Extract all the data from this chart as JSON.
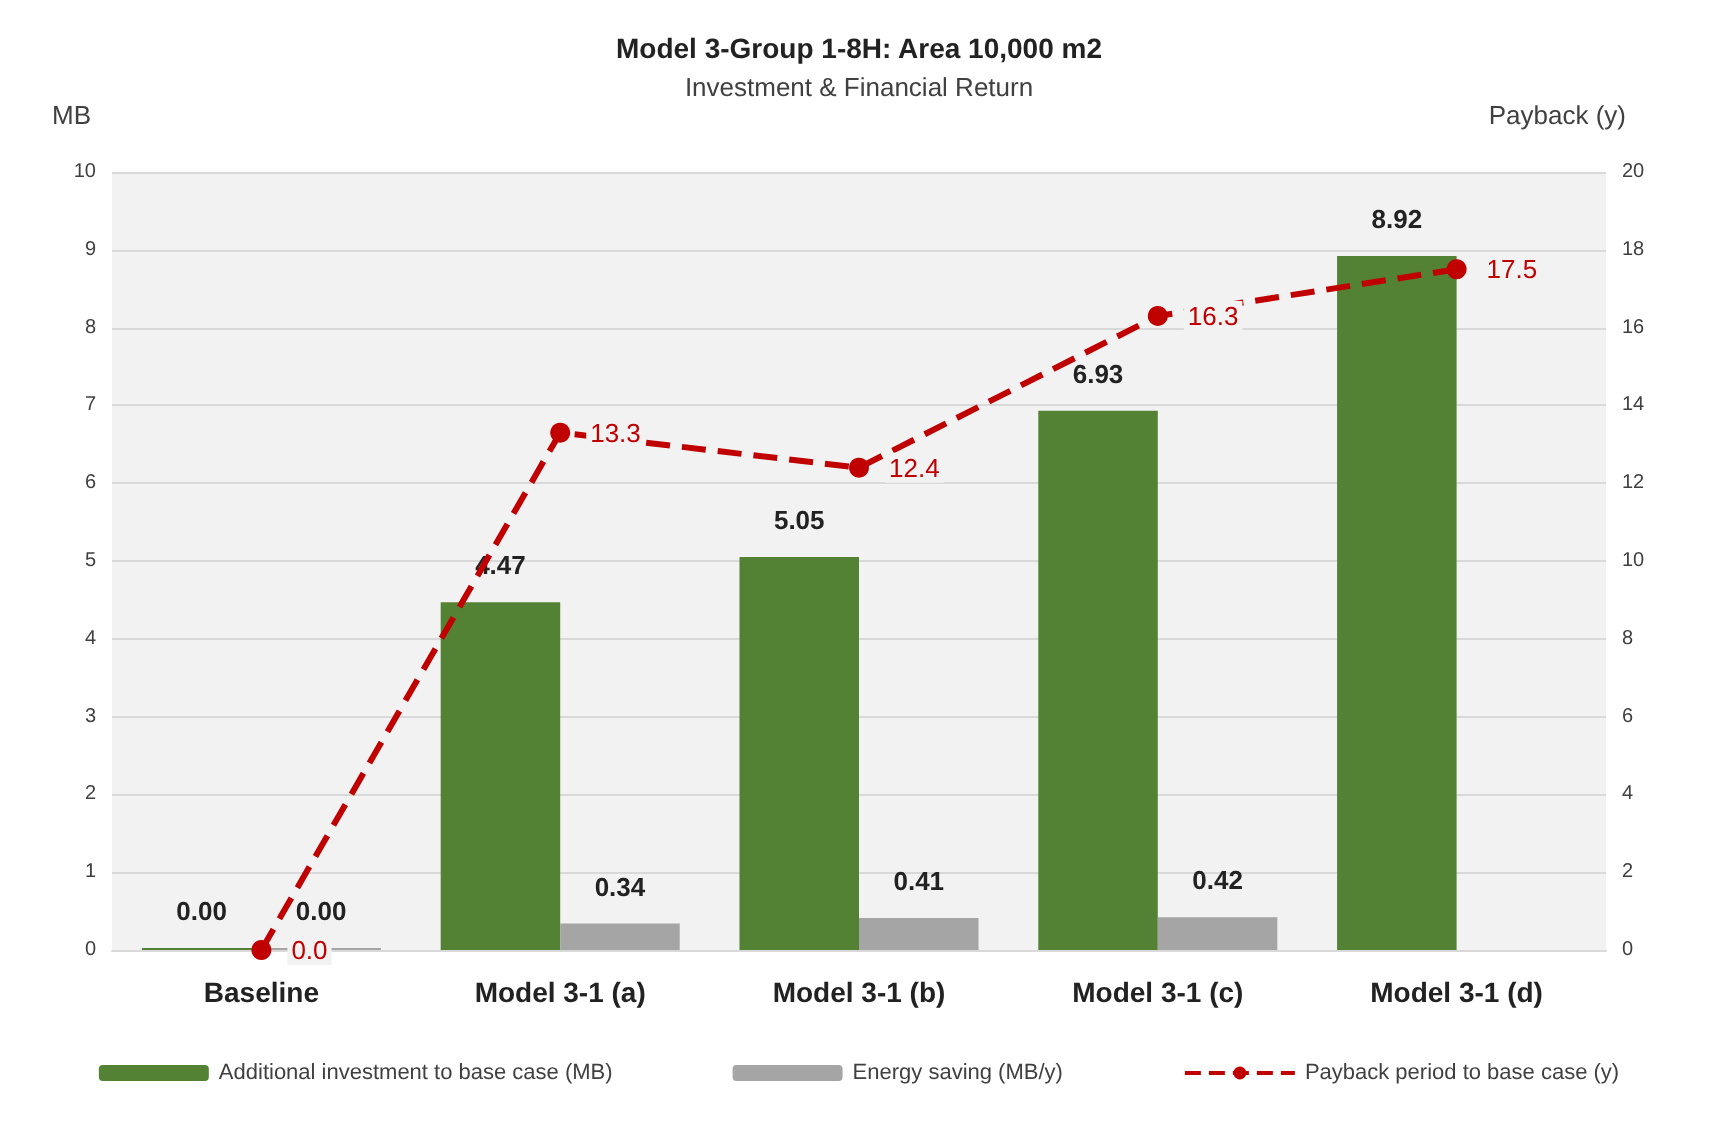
{
  "chart_data": {
    "type": "bar",
    "title": "Model 3-Group 1-8H: Area 10,000 m2",
    "subtitle": "Investment & Financial Return",
    "ylabel": "MB",
    "y2label": "Payback (y)",
    "categories": [
      "Baseline",
      "Model 3-1 (a)",
      "Model 3-1 (b)",
      "Model 3-1 (c)",
      "Model 3-1 (d)"
    ],
    "series": [
      {
        "name": "Additional investment to base case (MB)",
        "color": "#548235",
        "values": [
          0,
          4.47,
          5.05,
          6.93,
          8.92
        ],
        "value_labels": [
          "0.00",
          "4.47",
          "5.05",
          "6.93",
          "8.92"
        ]
      },
      {
        "name": "Energy saving (MB/y)",
        "color": "#a5a5a5",
        "values": [
          0,
          0.34,
          0.41,
          0.42,
          null
        ],
        "value_labels": [
          "0.00",
          "0.34",
          "0.41",
          "0.42",
          null
        ]
      },
      {
        "name": "Payback period to base case (y)",
        "type": "line",
        "axis": "y2",
        "color": "#c00000",
        "marker": "circle",
        "line_style": "dashed",
        "values": [
          0,
          13.3,
          12.4,
          16.3,
          17.5
        ],
        "value_labels": [
          "0.0",
          "13.3",
          "12.4",
          "16.3",
          "17.5"
        ]
      }
    ],
    "ylim": [
      0,
      10
    ],
    "yticks": [
      0,
      1,
      2,
      3,
      4,
      5,
      6,
      7,
      8,
      9,
      10
    ],
    "y2lim": [
      0,
      20
    ],
    "y2ticks": [
      0,
      2,
      4,
      6,
      8,
      10,
      12,
      14,
      16,
      18,
      20
    ],
    "grid": "y",
    "legend": "bottom"
  }
}
